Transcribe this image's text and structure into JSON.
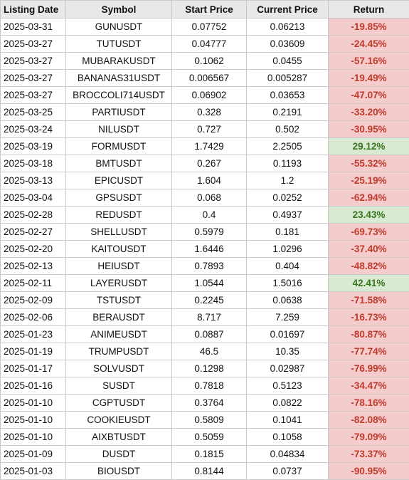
{
  "headers": [
    "Listing Date",
    "Symbol",
    "Start Price",
    "Current Price",
    "Return"
  ],
  "rows": [
    {
      "date": "2025-03-31",
      "symbol": "GUNUSDT",
      "start": "0.07752",
      "current": "0.06213",
      "ret": "-19.85%",
      "positive": false
    },
    {
      "date": "2025-03-27",
      "symbol": "TUTUSDT",
      "start": "0.04777",
      "current": "0.03609",
      "ret": "-24.45%",
      "positive": false
    },
    {
      "date": "2025-03-27",
      "symbol": "MUBARAKUSDT",
      "start": "0.1062",
      "current": "0.0455",
      "ret": "-57.16%",
      "positive": false
    },
    {
      "date": "2025-03-27",
      "symbol": "BANANAS31USDT",
      "start": "0.006567",
      "current": "0.005287",
      "ret": "-19.49%",
      "positive": false
    },
    {
      "date": "2025-03-27",
      "symbol": "BROCCOLI714USDT",
      "start": "0.06902",
      "current": "0.03653",
      "ret": "-47.07%",
      "positive": false
    },
    {
      "date": "2025-03-25",
      "symbol": "PARTIUSDT",
      "start": "0.328",
      "current": "0.2191",
      "ret": "-33.20%",
      "positive": false
    },
    {
      "date": "2025-03-24",
      "symbol": "NILUSDT",
      "start": "0.727",
      "current": "0.502",
      "ret": "-30.95%",
      "positive": false
    },
    {
      "date": "2025-03-19",
      "symbol": "FORMUSDT",
      "start": "1.7429",
      "current": "2.2505",
      "ret": "29.12%",
      "positive": true
    },
    {
      "date": "2025-03-18",
      "symbol": "BMTUSDT",
      "start": "0.267",
      "current": "0.1193",
      "ret": "-55.32%",
      "positive": false
    },
    {
      "date": "2025-03-13",
      "symbol": "EPICUSDT",
      "start": "1.604",
      "current": "1.2",
      "ret": "-25.19%",
      "positive": false
    },
    {
      "date": "2025-03-04",
      "symbol": "GPSUSDT",
      "start": "0.068",
      "current": "0.0252",
      "ret": "-62.94%",
      "positive": false
    },
    {
      "date": "2025-02-28",
      "symbol": "REDUSDT",
      "start": "0.4",
      "current": "0.4937",
      "ret": "23.43%",
      "positive": true
    },
    {
      "date": "2025-02-27",
      "symbol": "SHELLUSDT",
      "start": "0.5979",
      "current": "0.181",
      "ret": "-69.73%",
      "positive": false
    },
    {
      "date": "2025-02-20",
      "symbol": "KAITOUSDT",
      "start": "1.6446",
      "current": "1.0296",
      "ret": "-37.40%",
      "positive": false
    },
    {
      "date": "2025-02-13",
      "symbol": "HEIUSDT",
      "start": "0.7893",
      "current": "0.404",
      "ret": "-48.82%",
      "positive": false
    },
    {
      "date": "2025-02-11",
      "symbol": "LAYERUSDT",
      "start": "1.0544",
      "current": "1.5016",
      "ret": "42.41%",
      "positive": true
    },
    {
      "date": "2025-02-09",
      "symbol": "TSTUSDT",
      "start": "0.2245",
      "current": "0.0638",
      "ret": "-71.58%",
      "positive": false
    },
    {
      "date": "2025-02-06",
      "symbol": "BERAUSDT",
      "start": "8.717",
      "current": "7.259",
      "ret": "-16.73%",
      "positive": false
    },
    {
      "date": "2025-01-23",
      "symbol": "ANIMEUSDT",
      "start": "0.0887",
      "current": "0.01697",
      "ret": "-80.87%",
      "positive": false
    },
    {
      "date": "2025-01-19",
      "symbol": "TRUMPUSDT",
      "start": "46.5",
      "current": "10.35",
      "ret": "-77.74%",
      "positive": false
    },
    {
      "date": "2025-01-17",
      "symbol": "SOLVUSDT",
      "start": "0.1298",
      "current": "0.02987",
      "ret": "-76.99%",
      "positive": false
    },
    {
      "date": "2025-01-16",
      "symbol": "SUSDT",
      "start": "0.7818",
      "current": "0.5123",
      "ret": "-34.47%",
      "positive": false
    },
    {
      "date": "2025-01-10",
      "symbol": "CGPTUSDT",
      "start": "0.3764",
      "current": "0.0822",
      "ret": "-78.16%",
      "positive": false
    },
    {
      "date": "2025-01-10",
      "symbol": "COOKIEUSDT",
      "start": "0.5809",
      "current": "0.1041",
      "ret": "-82.08%",
      "positive": false
    },
    {
      "date": "2025-01-10",
      "symbol": "AIXBTUSDT",
      "start": "0.5059",
      "current": "0.1058",
      "ret": "-79.09%",
      "positive": false
    },
    {
      "date": "2025-01-09",
      "symbol": "DUSDT",
      "start": "0.1815",
      "current": "0.04834",
      "ret": "-73.37%",
      "positive": false
    },
    {
      "date": "2025-01-03",
      "symbol": "BIOUSDT",
      "start": "0.8144",
      "current": "0.0737",
      "ret": "-90.95%",
      "positive": false
    }
  ],
  "colors": {
    "negative_bg": "#f4cccc",
    "negative_text": "#c0392b",
    "positive_bg": "#d9ead3",
    "positive_text": "#38761d",
    "header_bg": "#e8e8e8"
  }
}
